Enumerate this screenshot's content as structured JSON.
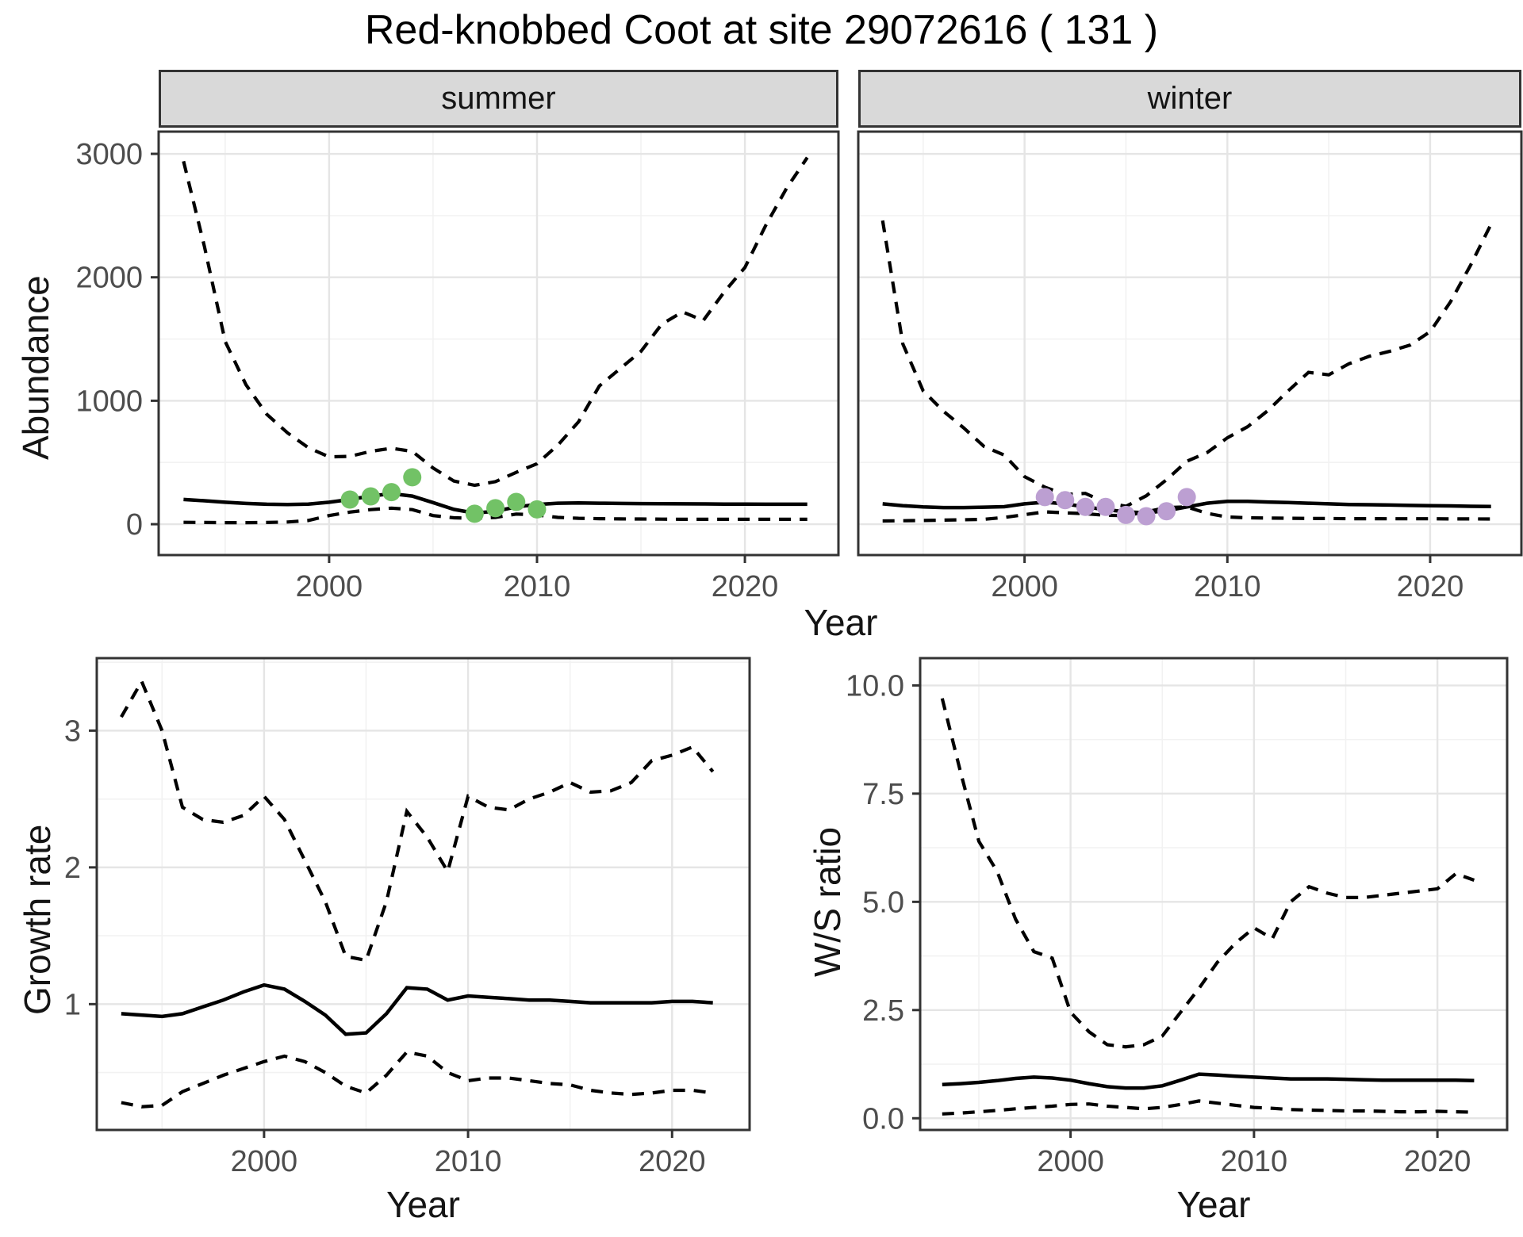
{
  "figure": {
    "title": "Red-knobbed Coot at site 29072616 ( 131 )",
    "shared_x_label": "Year"
  },
  "colors": {
    "summer_point": "#72C266",
    "winter_point": "#BC9FD2",
    "line": "#000000",
    "strip_bg": "#D9D9D9",
    "axis_text": "#4D4D4D",
    "grid_major": "#E5E5E5",
    "grid_minor": "#F2F2F2",
    "border": "#333333"
  },
  "chart_data": [
    {
      "id": "abundance-summer",
      "type": "line",
      "facet_label": "summer",
      "ylabel": "Abundance",
      "xlabel": "",
      "xlim": [
        1991.8,
        2024.5
      ],
      "ylim": [
        -250,
        3180
      ],
      "x_ticks": [
        {
          "v": 2000,
          "label": "2000"
        },
        {
          "v": 2010,
          "label": "2010"
        },
        {
          "v": 2020,
          "label": "2020"
        }
      ],
      "y_ticks": [
        {
          "v": 0,
          "label": "0"
        },
        {
          "v": 1000,
          "label": "1000"
        },
        {
          "v": 2000,
          "label": "2000"
        },
        {
          "v": 3000,
          "label": "3000"
        }
      ],
      "y_tick_labels_visible": true,
      "grid": true,
      "legend": "none",
      "x": [
        1993,
        1994,
        1995,
        1996,
        1997,
        1998,
        1999,
        2000,
        2001,
        2002,
        2003,
        2004,
        2005,
        2006,
        2007,
        2008,
        2009,
        2010,
        2011,
        2012,
        2013,
        2014,
        2015,
        2016,
        2017,
        2018,
        2019,
        2020,
        2021,
        2022,
        2023
      ],
      "series": [
        {
          "name": "upper-95ci",
          "style": "dashed",
          "values": [
            2940,
            2250,
            1480,
            1130,
            890,
            740,
            620,
            545,
            550,
            590,
            615,
            590,
            455,
            350,
            315,
            345,
            420,
            490,
            640,
            830,
            1120,
            1260,
            1400,
            1620,
            1720,
            1650,
            1880,
            2080,
            2420,
            2720,
            2970
          ]
        },
        {
          "name": "median",
          "style": "solid",
          "values": [
            200,
            190,
            178,
            168,
            162,
            160,
            163,
            178,
            200,
            228,
            248,
            228,
            175,
            120,
            90,
            105,
            140,
            160,
            170,
            172,
            170,
            168,
            167,
            166,
            165,
            164,
            163,
            163,
            162,
            162,
            162
          ]
        },
        {
          "name": "lower-95ci",
          "style": "dashed",
          "values": [
            15,
            14,
            13,
            13,
            14,
            18,
            30,
            70,
            98,
            118,
            130,
            118,
            70,
            52,
            48,
            55,
            82,
            75,
            55,
            48,
            45,
            43,
            42,
            41,
            40,
            40,
            40,
            40,
            40,
            40,
            40
          ]
        }
      ],
      "points": {
        "name": "observed-counts",
        "color_key": "summer_point",
        "x": [
          2001,
          2002,
          2003,
          2004,
          2007,
          2008,
          2009,
          2010
        ],
        "y": [
          200,
          225,
          260,
          380,
          85,
          130,
          180,
          120
        ]
      }
    },
    {
      "id": "abundance-winter",
      "type": "line",
      "facet_label": "winter",
      "ylabel": "",
      "xlabel": "",
      "xlim": [
        1991.8,
        2024.5
      ],
      "ylim": [
        -250,
        3180
      ],
      "x_ticks": [
        {
          "v": 2000,
          "label": "2000"
        },
        {
          "v": 2010,
          "label": "2010"
        },
        {
          "v": 2020,
          "label": "2020"
        }
      ],
      "y_ticks": [
        {
          "v": 0,
          "label": "0"
        },
        {
          "v": 1000,
          "label": "1000"
        },
        {
          "v": 2000,
          "label": "2000"
        },
        {
          "v": 3000,
          "label": "3000"
        }
      ],
      "y_tick_labels_visible": false,
      "grid": true,
      "legend": "none",
      "x": [
        1993,
        1994,
        1995,
        1996,
        1997,
        1998,
        1999,
        2000,
        2001,
        2002,
        2003,
        2004,
        2005,
        2006,
        2007,
        2008,
        2009,
        2010,
        2011,
        2012,
        2013,
        2014,
        2015,
        2016,
        2017,
        2018,
        2019,
        2020,
        2021,
        2022,
        2023
      ],
      "series": [
        {
          "name": "upper-95ci",
          "style": "dashed",
          "values": [
            2460,
            1460,
            1080,
            915,
            780,
            630,
            560,
            385,
            300,
            240,
            250,
            175,
            145,
            230,
            360,
            510,
            580,
            700,
            790,
            920,
            1080,
            1230,
            1210,
            1300,
            1360,
            1400,
            1450,
            1560,
            1800,
            2100,
            2430
          ]
        },
        {
          "name": "median",
          "style": "solid",
          "values": [
            165,
            150,
            140,
            135,
            135,
            138,
            142,
            165,
            178,
            165,
            140,
            118,
            100,
            92,
            110,
            140,
            170,
            185,
            185,
            180,
            175,
            170,
            165,
            160,
            158,
            155,
            152,
            150,
            148,
            145,
            143
          ]
        },
        {
          "name": "lower-95ci",
          "style": "dashed",
          "values": [
            26,
            28,
            30,
            33,
            36,
            40,
            55,
            77,
            100,
            92,
            85,
            72,
            70,
            100,
            135,
            140,
            88,
            58,
            52,
            50,
            48,
            47,
            46,
            45,
            45,
            44,
            44,
            44,
            43,
            43,
            42
          ]
        }
      ],
      "points": {
        "name": "observed-counts",
        "color_key": "winter_point",
        "x": [
          2001,
          2002,
          2003,
          2004,
          2005,
          2006,
          2007,
          2008
        ],
        "y": [
          220,
          195,
          140,
          140,
          75,
          65,
          105,
          220
        ]
      }
    },
    {
      "id": "growth-rate",
      "type": "line",
      "facet_label": "",
      "ylabel": "Growth rate",
      "xlabel": "Year",
      "xlim": [
        1991.8,
        2023.8
      ],
      "ylim": [
        0.08,
        3.53
      ],
      "x_ticks": [
        {
          "v": 2000,
          "label": "2000"
        },
        {
          "v": 2010,
          "label": "2010"
        },
        {
          "v": 2020,
          "label": "2020"
        }
      ],
      "y_ticks": [
        {
          "v": 1,
          "label": "1"
        },
        {
          "v": 2,
          "label": "2"
        },
        {
          "v": 3,
          "label": "3"
        }
      ],
      "y_tick_labels_visible": true,
      "grid": true,
      "legend": "none",
      "x": [
        1993,
        1994,
        1995,
        1996,
        1997,
        1998,
        1999,
        2000,
        2001,
        2002,
        2003,
        2004,
        2005,
        2006,
        2007,
        2008,
        2009,
        2010,
        2011,
        2012,
        2013,
        2014,
        2015,
        2016,
        2017,
        2018,
        2019,
        2020,
        2021,
        2022
      ],
      "series": [
        {
          "name": "upper-95ci",
          "style": "dashed",
          "values": [
            3.1,
            3.36,
            3.0,
            2.44,
            2.35,
            2.33,
            2.38,
            2.52,
            2.35,
            2.05,
            1.75,
            1.35,
            1.32,
            1.75,
            2.41,
            2.22,
            1.97,
            2.52,
            2.44,
            2.42,
            2.5,
            2.55,
            2.62,
            2.55,
            2.56,
            2.62,
            2.78,
            2.82,
            2.88,
            2.7
          ]
        },
        {
          "name": "median",
          "style": "solid",
          "values": [
            0.93,
            0.92,
            0.91,
            0.93,
            0.98,
            1.03,
            1.09,
            1.14,
            1.11,
            1.02,
            0.92,
            0.78,
            0.79,
            0.93,
            1.12,
            1.11,
            1.03,
            1.06,
            1.05,
            1.04,
            1.03,
            1.03,
            1.02,
            1.01,
            1.01,
            1.01,
            1.01,
            1.02,
            1.02,
            1.01
          ]
        },
        {
          "name": "lower-95ci",
          "style": "dashed",
          "values": [
            0.28,
            0.25,
            0.26,
            0.36,
            0.42,
            0.48,
            0.53,
            0.58,
            0.62,
            0.58,
            0.5,
            0.4,
            0.35,
            0.48,
            0.65,
            0.62,
            0.5,
            0.44,
            0.46,
            0.46,
            0.44,
            0.42,
            0.41,
            0.37,
            0.35,
            0.34,
            0.35,
            0.37,
            0.37,
            0.35
          ]
        }
      ],
      "points": null
    },
    {
      "id": "ws-ratio",
      "type": "line",
      "facet_label": "",
      "ylabel": "W/S ratio",
      "xlabel": "Year",
      "xlim": [
        1991.8,
        2023.8
      ],
      "ylim": [
        -0.27,
        10.63
      ],
      "x_ticks": [
        {
          "v": 2000,
          "label": "2000"
        },
        {
          "v": 2010,
          "label": "2010"
        },
        {
          "v": 2020,
          "label": "2020"
        }
      ],
      "y_ticks": [
        {
          "v": 0,
          "label": "0.0"
        },
        {
          "v": 2.5,
          "label": "2.5"
        },
        {
          "v": 5,
          "label": "5.0"
        },
        {
          "v": 7.5,
          "label": "7.5"
        },
        {
          "v": 10,
          "label": "10.0"
        }
      ],
      "y_tick_labels_visible": true,
      "grid": true,
      "legend": "none",
      "x": [
        1993,
        1994,
        1995,
        1996,
        1997,
        1998,
        1999,
        2000,
        2001,
        2002,
        2003,
        2004,
        2005,
        2006,
        2007,
        2008,
        2009,
        2010,
        2011,
        2012,
        2013,
        2014,
        2015,
        2016,
        2017,
        2018,
        2019,
        2020,
        2021,
        2022
      ],
      "series": [
        {
          "name": "upper-95ci",
          "style": "dashed",
          "values": [
            9.7,
            8.0,
            6.4,
            5.7,
            4.6,
            3.85,
            3.7,
            2.45,
            2.0,
            1.7,
            1.65,
            1.7,
            1.9,
            2.45,
            3.0,
            3.6,
            4.05,
            4.4,
            4.15,
            5.0,
            5.35,
            5.2,
            5.1,
            5.1,
            5.15,
            5.2,
            5.25,
            5.3,
            5.65,
            5.5
          ]
        },
        {
          "name": "median",
          "style": "solid",
          "values": [
            0.78,
            0.8,
            0.83,
            0.87,
            0.92,
            0.95,
            0.93,
            0.88,
            0.8,
            0.73,
            0.7,
            0.7,
            0.75,
            0.88,
            1.02,
            1.0,
            0.97,
            0.95,
            0.93,
            0.91,
            0.91,
            0.91,
            0.9,
            0.89,
            0.88,
            0.88,
            0.88,
            0.88,
            0.88,
            0.87
          ]
        },
        {
          "name": "lower-95ci",
          "style": "dashed",
          "values": [
            0.1,
            0.12,
            0.15,
            0.18,
            0.22,
            0.25,
            0.28,
            0.32,
            0.33,
            0.28,
            0.25,
            0.22,
            0.25,
            0.32,
            0.4,
            0.35,
            0.3,
            0.25,
            0.23,
            0.2,
            0.19,
            0.18,
            0.17,
            0.17,
            0.16,
            0.15,
            0.15,
            0.16,
            0.15,
            0.14
          ]
        }
      ],
      "points": null
    }
  ]
}
